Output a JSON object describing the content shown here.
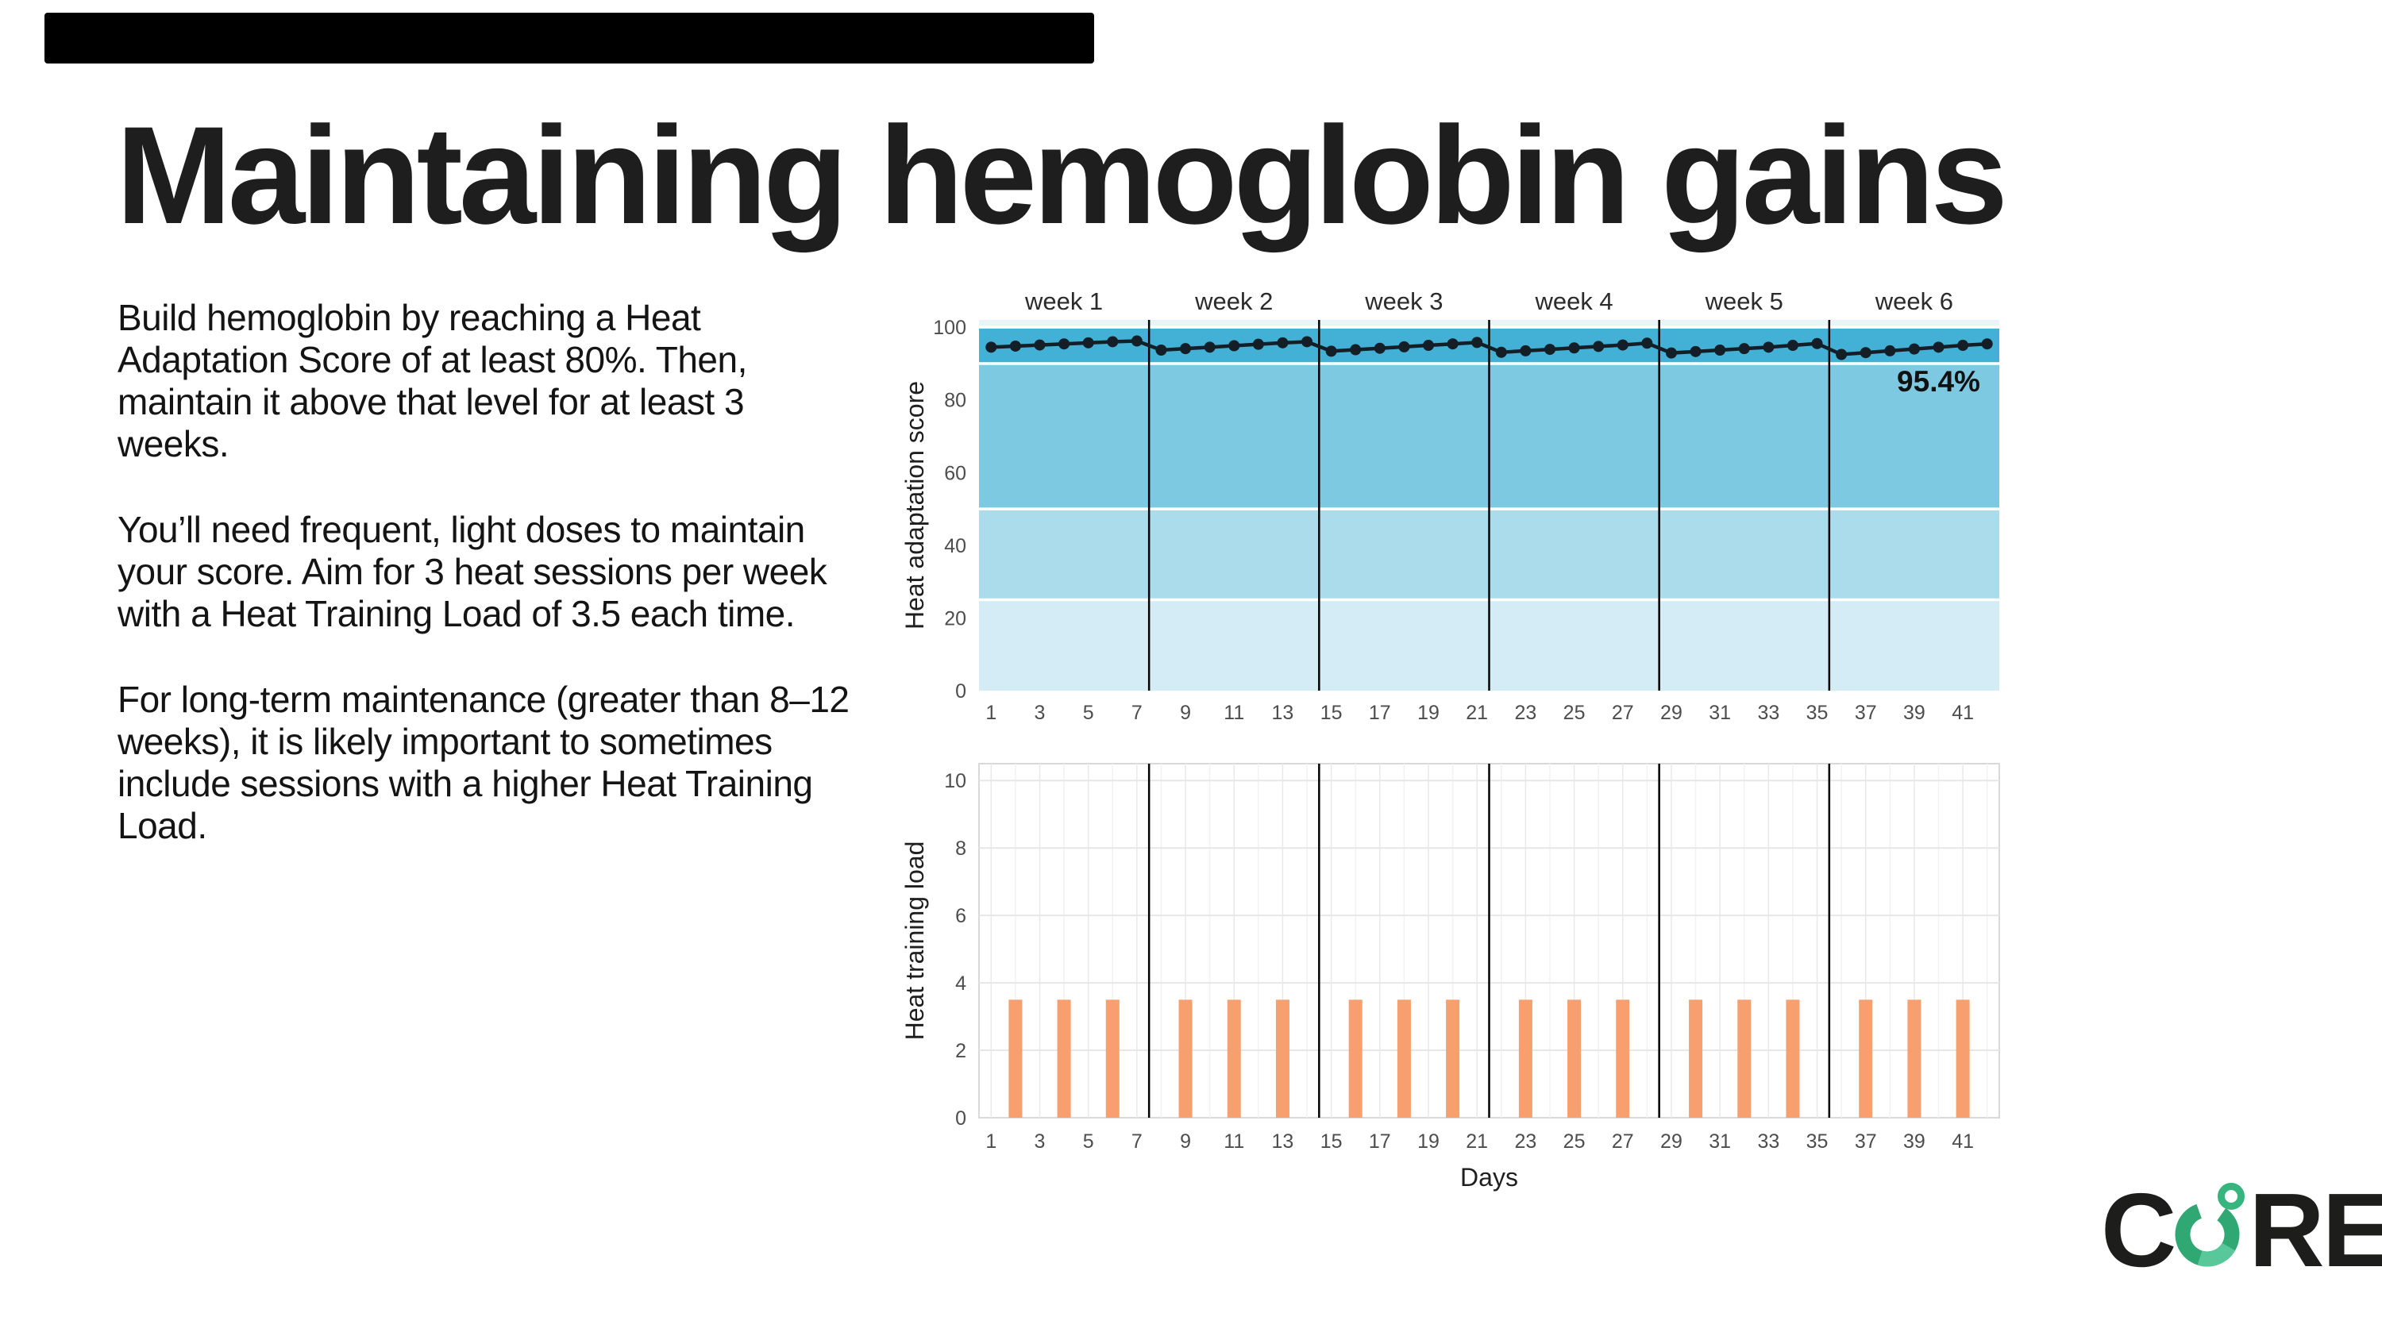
{
  "slide": {
    "title": "Maintaining hemoglobin gains",
    "paragraphs": [
      "Build hemoglobin by reaching a Heat Adaptation Score of at least 80%. Then, maintain it above that level for at least 3 weeks.",
      "You’ll need frequent, light doses to maintain your score. Aim for 3 heat sessions per week with a Heat Training Load of 3.5 each time.",
      "For long-term maintenance (greater than 8–12 weeks), it is likely important to sometimes include sessions with a higher Heat Training Load."
    ],
    "logo": {
      "text": "CORE",
      "left": "C",
      "right": "RE"
    },
    "colors": {
      "logo_green_dark": "#2FA874",
      "logo_green_light": "#58C79A",
      "text_dark": "#1e1e1e"
    }
  },
  "chart_data": [
    {
      "type": "line",
      "title": "",
      "ylabel": "Heat adaptation score",
      "ylim": [
        0,
        102
      ],
      "week_labels": [
        "week 1",
        "week 2",
        "week 3",
        "week 4",
        "week 5",
        "week 6"
      ],
      "week_label_center_days": [
        4,
        11,
        18,
        25,
        32,
        39
      ],
      "week_dividers": [
        7.5,
        14.5,
        21.5,
        28.5,
        35.5
      ],
      "x": [
        1,
        2,
        3,
        4,
        5,
        6,
        7,
        8,
        9,
        10,
        11,
        12,
        13,
        14,
        15,
        16,
        17,
        18,
        19,
        20,
        21,
        22,
        23,
        24,
        25,
        26,
        27,
        28,
        29,
        30,
        31,
        32,
        33,
        34,
        35,
        36,
        37,
        38,
        39,
        40,
        41,
        42
      ],
      "values": [
        94.5,
        94.8,
        95.1,
        95.4,
        95.7,
        96.0,
        96.2,
        93.7,
        94.1,
        94.5,
        94.9,
        95.3,
        95.7,
        96.0,
        93.4,
        93.8,
        94.2,
        94.6,
        95.0,
        95.4,
        95.8,
        93.1,
        93.5,
        93.9,
        94.3,
        94.7,
        95.1,
        95.6,
        92.9,
        93.3,
        93.7,
        94.1,
        94.5,
        95.0,
        95.5,
        92.5,
        93.0,
        93.5,
        94.0,
        94.5,
        95.0,
        95.4
      ],
      "xticks": [
        1,
        3,
        5,
        7,
        9,
        11,
        13,
        15,
        17,
        19,
        21,
        23,
        25,
        27,
        29,
        31,
        33,
        35,
        37,
        39,
        41
      ],
      "yticks": [
        0,
        20,
        40,
        60,
        80,
        100
      ],
      "bands": [
        {
          "from": 0,
          "to": 25,
          "color": "#d3ecf5"
        },
        {
          "from": 25,
          "to": 50,
          "color": "#aadcec"
        },
        {
          "from": 50,
          "to": 90,
          "color": "#7ec9e2"
        },
        {
          "from": 90,
          "to": 100,
          "color": "#43b0d5"
        },
        {
          "from": 100,
          "to": 102,
          "color": "#e9f4f9"
        }
      ],
      "band_separators": [
        25,
        50,
        90,
        100
      ],
      "line_color": "#141e26",
      "divider_color": "#000000",
      "annotation": {
        "text": "95.4%",
        "day": 40,
        "value": 85,
        "color": "#111111"
      },
      "legend": "none",
      "grid": false
    },
    {
      "type": "bar",
      "title": "",
      "xlabel": "Days",
      "ylabel": "Heat training load",
      "ylim": [
        0,
        10.5
      ],
      "bar_days": [
        2,
        4,
        6,
        9,
        11,
        13,
        16,
        18,
        20,
        23,
        25,
        27,
        30,
        32,
        34,
        37,
        39,
        41
      ],
      "bar_value": 3.5,
      "bar_color": "#F79F6E",
      "xticks": [
        1,
        3,
        5,
        7,
        9,
        11,
        13,
        15,
        17,
        19,
        21,
        23,
        25,
        27,
        29,
        31,
        33,
        35,
        37,
        39,
        41
      ],
      "yticks": [
        0,
        2,
        4,
        6,
        8,
        10
      ],
      "week_dividers": [
        7.5,
        14.5,
        21.5,
        28.5,
        35.5
      ],
      "divider_color": "#000000",
      "frame_color": "#d9d9d9",
      "grid_color": "#e7e7e7",
      "legend": "none",
      "grid": true
    }
  ]
}
